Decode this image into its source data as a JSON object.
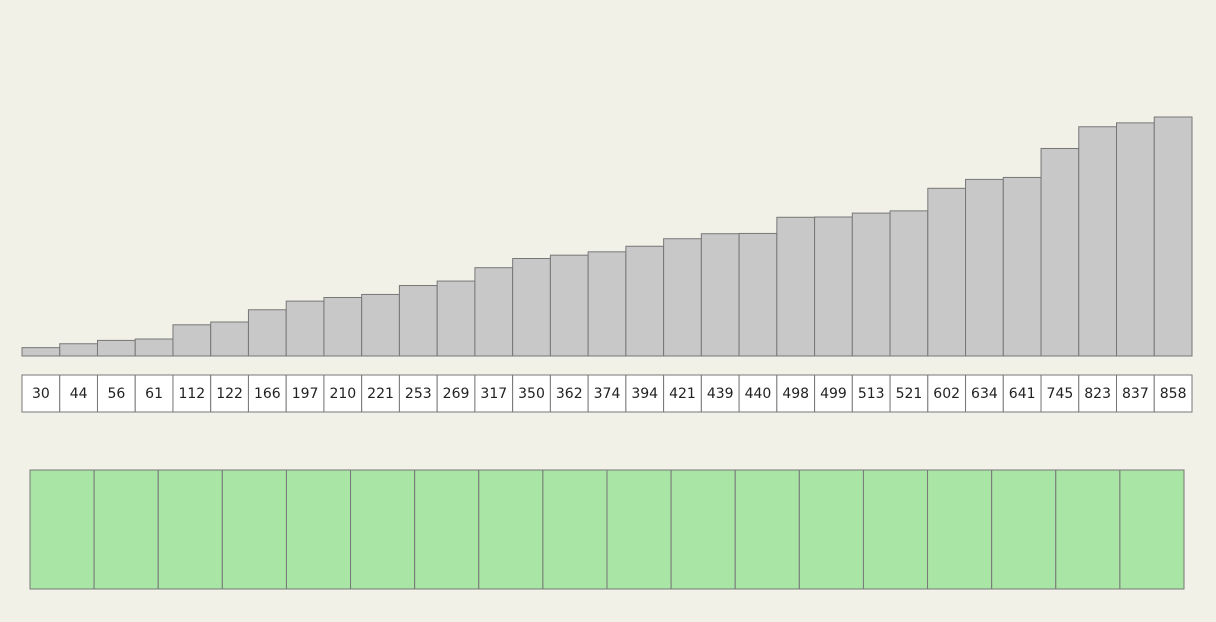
{
  "chart_data": {
    "type": "bar",
    "values": [
      30,
      44,
      56,
      61,
      112,
      122,
      166,
      197,
      210,
      221,
      253,
      269,
      317,
      350,
      362,
      374,
      394,
      421,
      439,
      440,
      498,
      499,
      513,
      521,
      602,
      634,
      641,
      745,
      823,
      837,
      858
    ],
    "color": "#c8c8c8"
  }
}
